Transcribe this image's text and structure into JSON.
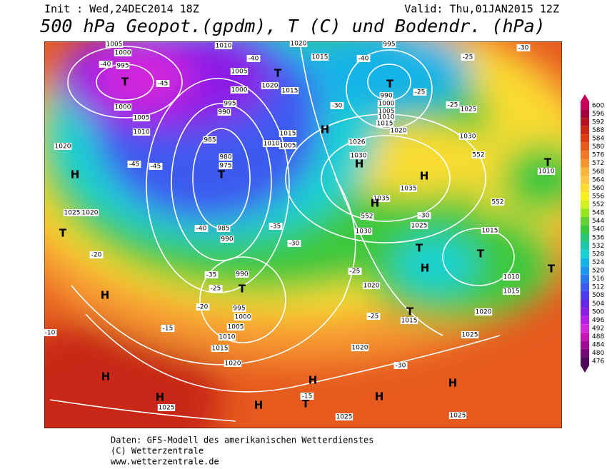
{
  "header": {
    "init": "Init : Wed,24DEC2014 18Z",
    "valid": "Valid: Thu,01JAN2015 12Z",
    "title": "500 hPa Geopot.(gpdm), T (C) und Bodendr. (hPa)"
  },
  "legend": {
    "values": [
      600,
      596,
      592,
      588,
      584,
      580,
      576,
      572,
      568,
      564,
      560,
      556,
      552,
      548,
      544,
      540,
      536,
      532,
      528,
      524,
      520,
      516,
      512,
      508,
      504,
      500,
      496,
      492,
      488,
      484,
      480,
      476
    ],
    "colors": [
      "#c8005a",
      "#a0003c",
      "#b4141e",
      "#c82814",
      "#dc3c14",
      "#e65a1e",
      "#f07828",
      "#f59632",
      "#fab43c",
      "#fac846",
      "#fadc32",
      "#f5f01e",
      "#d2f01e",
      "#96e61e",
      "#64d232",
      "#3cc83c",
      "#28c878",
      "#1ec8aa",
      "#14d2d2",
      "#14b4e6",
      "#1e96f0",
      "#2878f0",
      "#3c5af0",
      "#503cf0",
      "#6428e6",
      "#8c1ee6",
      "#b41ee6",
      "#d228dc",
      "#c814b4",
      "#a00a96",
      "#780a78",
      "#500a5a"
    ]
  },
  "map": {
    "labels": [
      "1005",
      "1000",
      "995",
      "-40",
      "T",
      "-45",
      "1000",
      "1005",
      "1010",
      "1020",
      "H",
      "-45",
      "-45",
      "985",
      "980",
      "975",
      "T",
      "985",
      "990",
      "-40",
      "1025",
      "1020",
      "T",
      "-20",
      "-35",
      "990",
      "T",
      "-25",
      "H",
      "-20",
      "995",
      "1000",
      "1005",
      "1010",
      "1015",
      "-15",
      "1020",
      "H",
      "H",
      "1025",
      "1010",
      "-40",
      "1005",
      "T",
      "1000",
      "995",
      "990",
      "1020",
      "1015",
      "1015",
      "1010",
      "1005",
      "H",
      "-35",
      "-30",
      "1020",
      "1015",
      "-40",
      "995",
      "T",
      "990",
      "1000",
      "1005",
      "1010",
      "1015",
      "1020",
      "1026",
      "1030",
      "H",
      "H",
      "1035",
      "1035",
      "H",
      "552",
      "1030",
      "1025",
      "-30",
      "-25",
      "-30",
      "1025",
      "1030",
      "552",
      "T",
      "1010",
      "552",
      "1015",
      "T",
      "1010",
      "1015",
      "T",
      "H",
      "T",
      "1020",
      "-25",
      "-25",
      "1015",
      "T",
      "1020",
      "1025",
      "-30",
      "1020",
      "H",
      "H",
      "H",
      "T",
      "-15",
      "H",
      "1025",
      "1025",
      "-10",
      "-25",
      "-25",
      "-30"
    ]
  },
  "footer": {
    "source": "Daten: GFS-Modell des amerikanischen Wetterdienstes",
    "copyright": "(C) Wetterzentrale",
    "url": "www.wetterzentrale.de"
  }
}
